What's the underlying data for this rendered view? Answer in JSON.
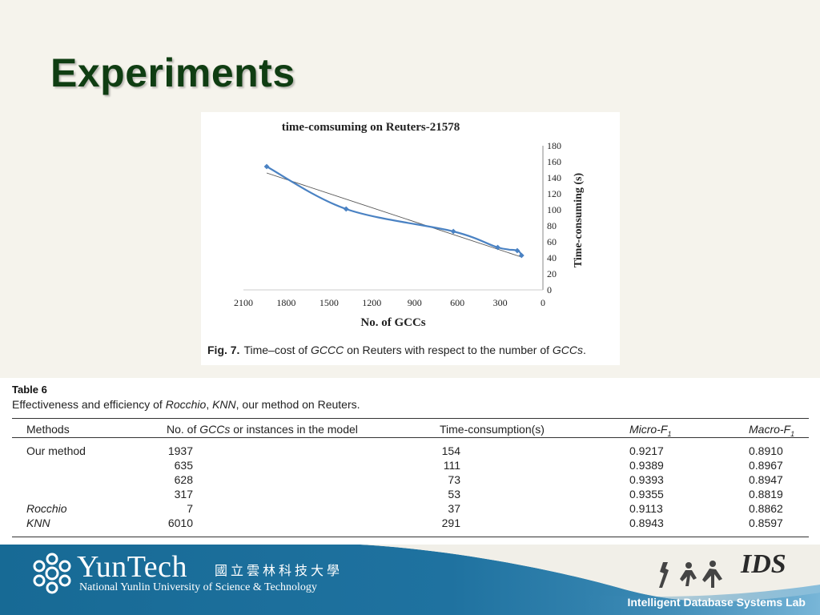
{
  "slide": {
    "title": "Experiments"
  },
  "figure": {
    "caption_label": "Fig. 7.",
    "caption_parts": [
      "Time–cost of ",
      "GCCC",
      " on Reuters with respect to the number of ",
      "GCCs",
      "."
    ]
  },
  "chart_data": {
    "type": "line",
    "title": "time-comsuming on Reuters-21578",
    "xlabel": "No. of GCCs",
    "ylabel": "Time-consuming (s)",
    "x_reversed": true,
    "y_axis_side": "right",
    "xlim": [
      2100,
      0
    ],
    "ylim": [
      0,
      180
    ],
    "x_ticks": [
      2100,
      1800,
      1500,
      1200,
      900,
      600,
      300,
      0
    ],
    "y_ticks": [
      0,
      20,
      40,
      60,
      80,
      100,
      120,
      140,
      160,
      180
    ],
    "grid": false,
    "series": [
      {
        "x": [
          1937,
          1380,
          628,
          317,
          180,
          150
        ],
        "y": [
          154,
          101,
          73,
          53,
          49,
          43
        ],
        "marker": "diamond",
        "line": "smooth",
        "color": "#4a82c3"
      }
    ],
    "trendline": {
      "from": [
        1937,
        146
      ],
      "to": [
        150,
        41
      ],
      "color": "#555555"
    }
  },
  "table": {
    "title": "Table 6",
    "caption_parts": [
      "Effectiveness and efficiency of ",
      "Rocchio",
      ", ",
      "KNN",
      ", our method on Reuters."
    ],
    "headers": {
      "methods": "Methods",
      "count_pre": "No. of ",
      "count_italic": "GCCs",
      "count_post": " or instances in the model",
      "time": "Time-consumption(s)",
      "micro": "Micro-F",
      "micro_sub": "1",
      "macro": "Macro-F",
      "macro_sub": "1"
    },
    "rows": [
      {
        "method": "Our method",
        "italic": false,
        "count": "1937",
        "time": "154",
        "micro": "0.9217",
        "macro": "0.8910"
      },
      {
        "method": "",
        "italic": false,
        "count": "635",
        "time": "111",
        "micro": "0.9389",
        "macro": "0.8967"
      },
      {
        "method": "",
        "italic": false,
        "count": "628",
        "time": "73",
        "micro": "0.9393",
        "macro": "0.8947"
      },
      {
        "method": "",
        "italic": false,
        "count": "317",
        "time": "53",
        "micro": "0.9355",
        "macro": "0.8819"
      },
      {
        "method": "Rocchio",
        "italic": true,
        "count": "7",
        "time": "37",
        "micro": "0.9113",
        "macro": "0.8862"
      },
      {
        "method": "KNN",
        "italic": true,
        "count": "6010",
        "time": "291",
        "micro": "0.8943",
        "macro": "0.8597"
      }
    ]
  },
  "footer": {
    "logo_wordmark": "YunTech",
    "logo_cjk": "國立雲林科技大學",
    "university": "National Yunlin University of Science & Technology",
    "lab_logo": "IDS",
    "lab": "Intelligent Database Systems Lab",
    "colors": {
      "band": "#1a6590",
      "band_light": "#5a9fc4"
    }
  }
}
